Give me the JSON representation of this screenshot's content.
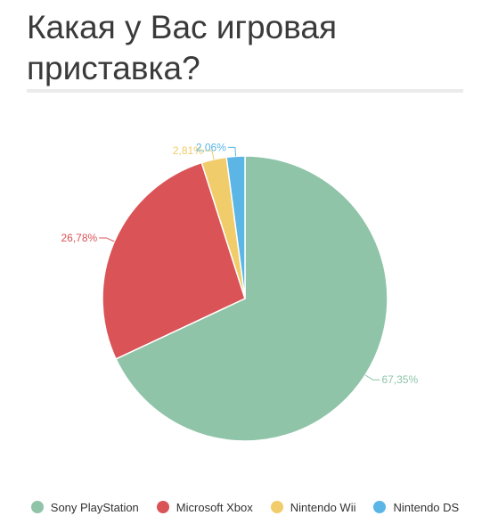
{
  "page": {
    "title": "Какая у Вас игровая приставка?"
  },
  "chart_data": {
    "type": "pie",
    "title": "Какая у Вас игровая приставка?",
    "slices": [
      {
        "name": "Sony PlayStation",
        "value": 67.35,
        "label": "67,35%",
        "color": "#8fc4a8"
      },
      {
        "name": "Microsoft Xbox",
        "value": 26.78,
        "label": "26,78%",
        "color": "#d95357"
      },
      {
        "name": "Nintendo Wii",
        "value": 2.81,
        "label": "2,81%",
        "color": "#f0cc6a"
      },
      {
        "name": "Nintendo DS",
        "value": 2.06,
        "label": "2,06%",
        "color": "#5bb6e6"
      }
    ],
    "start": "12 o'clock",
    "direction": "clockwise",
    "legend": "bottom"
  }
}
